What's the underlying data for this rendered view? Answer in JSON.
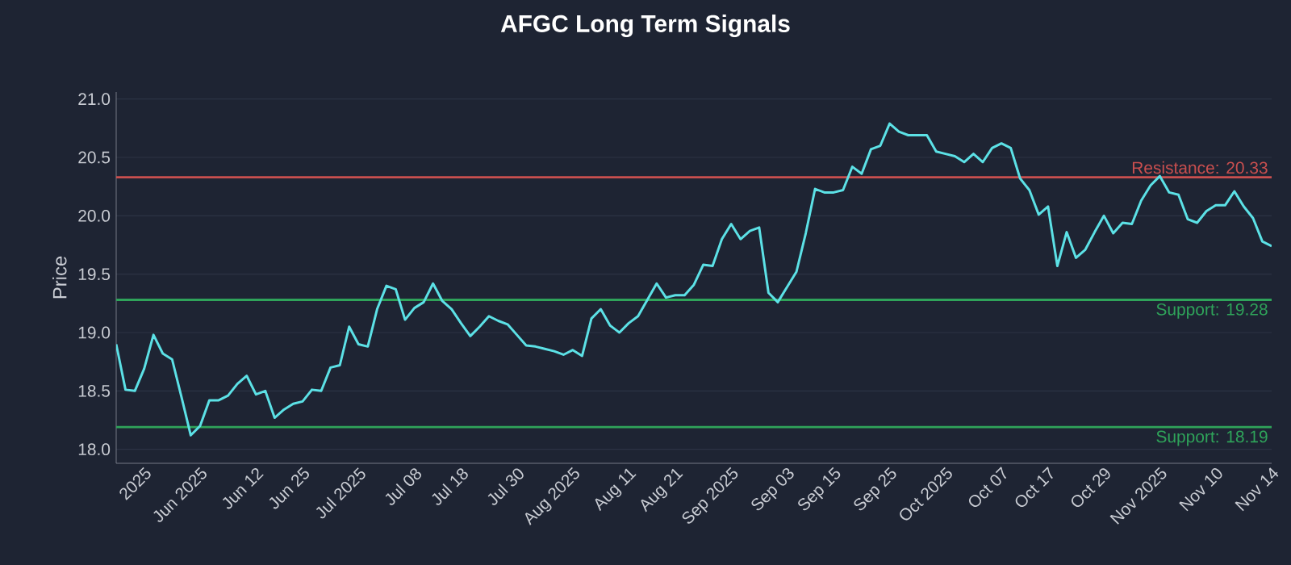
{
  "chart_data": {
    "type": "line",
    "title": "AFGC Long Term Signals",
    "ylabel": "Price",
    "categories": [
      null,
      null,
      null,
      "2025",
      null,
      null,
      null,
      null,
      null,
      "Jun 2025",
      null,
      null,
      null,
      null,
      null,
      "Jun 12",
      null,
      null,
      null,
      null,
      "Jun 25",
      null,
      null,
      null,
      null,
      null,
      "Jul 2025",
      null,
      null,
      null,
      null,
      null,
      "Jul 08",
      null,
      null,
      null,
      null,
      "Jul 18",
      null,
      null,
      null,
      null,
      null,
      "Jul 30",
      null,
      null,
      null,
      null,
      null,
      "Aug 2025",
      null,
      null,
      null,
      null,
      null,
      "Aug 11",
      null,
      null,
      null,
      null,
      "Aug 21",
      null,
      null,
      null,
      null,
      null,
      "Sep 2025",
      null,
      null,
      null,
      null,
      null,
      "Sep 03",
      null,
      null,
      null,
      null,
      "Sep 15",
      null,
      null,
      null,
      null,
      null,
      "Sep 25",
      null,
      null,
      null,
      null,
      null,
      "Oct 2025",
      null,
      null,
      null,
      null,
      null,
      "Oct 07",
      null,
      null,
      null,
      null,
      "Oct 17",
      null,
      null,
      null,
      null,
      null,
      "Oct 29",
      null,
      null,
      null,
      null,
      null,
      "Nov 2025",
      null,
      null,
      null,
      null,
      null,
      "Nov 10",
      null,
      null,
      null,
      null,
      null,
      "Nov 14"
    ],
    "series": [
      {
        "color": "#5ce1e6",
        "values": [
          18.9,
          18.51,
          18.5,
          18.69,
          18.98,
          18.82,
          18.77,
          18.45,
          18.12,
          18.2,
          18.42,
          18.42,
          18.46,
          18.56,
          18.63,
          18.47,
          18.5,
          18.27,
          18.34,
          18.39,
          18.41,
          18.51,
          18.5,
          18.7,
          18.72,
          19.05,
          18.9,
          18.88,
          19.2,
          19.4,
          19.37,
          19.11,
          19.21,
          19.26,
          19.42,
          19.27,
          19.2,
          19.08,
          18.97,
          19.05,
          19.14,
          19.1,
          19.07,
          18.98,
          18.89,
          18.88,
          18.86,
          18.84,
          18.81,
          18.85,
          18.8,
          19.12,
          19.2,
          19.06,
          19.0,
          19.08,
          19.14,
          19.28,
          19.42,
          19.3,
          19.32,
          19.32,
          19.41,
          19.58,
          19.57,
          19.8,
          19.93,
          19.8,
          19.87,
          19.9,
          19.34,
          19.26,
          19.39,
          19.52,
          19.85,
          20.23,
          20.2,
          20.2,
          20.22,
          20.42,
          20.36,
          20.57,
          20.6,
          20.79,
          20.72,
          20.69,
          20.69,
          20.69,
          20.55,
          20.53,
          20.51,
          20.46,
          20.53,
          20.46,
          20.58,
          20.62,
          20.58,
          20.32,
          20.22,
          20.01,
          20.08,
          19.57,
          19.86,
          19.64,
          19.71,
          19.86,
          20.0,
          19.85,
          19.94,
          19.93,
          20.13,
          20.26,
          20.34,
          20.2,
          20.18,
          19.97,
          19.94,
          20.04,
          20.09,
          20.09,
          20.21,
          20.08,
          19.98,
          19.78,
          19.74
        ]
      }
    ],
    "ylim": [
      17.88,
      21.06
    ],
    "yticks": [
      {
        "value": 18,
        "label": "18.0"
      },
      18.5,
      {
        "value": 19,
        "label": "19.0"
      },
      19.5,
      {
        "value": 20,
        "label": "20.0"
      },
      20.5,
      {
        "value": 21,
        "label": "21.0"
      }
    ],
    "grid": "y",
    "line_style": "solid",
    "marker": "none",
    "ref_lines": [
      {
        "axis": "y",
        "value": 20.33,
        "label": "Resistance: 20.33",
        "color": "#c94f4f"
      },
      {
        "axis": "y",
        "value": 19.28,
        "label": "Support: 19.28",
        "color": "#2fa35a"
      },
      {
        "axis": "y",
        "value": 18.19,
        "label": "Support: 18.19",
        "color": "#2fa35a"
      }
    ]
  }
}
